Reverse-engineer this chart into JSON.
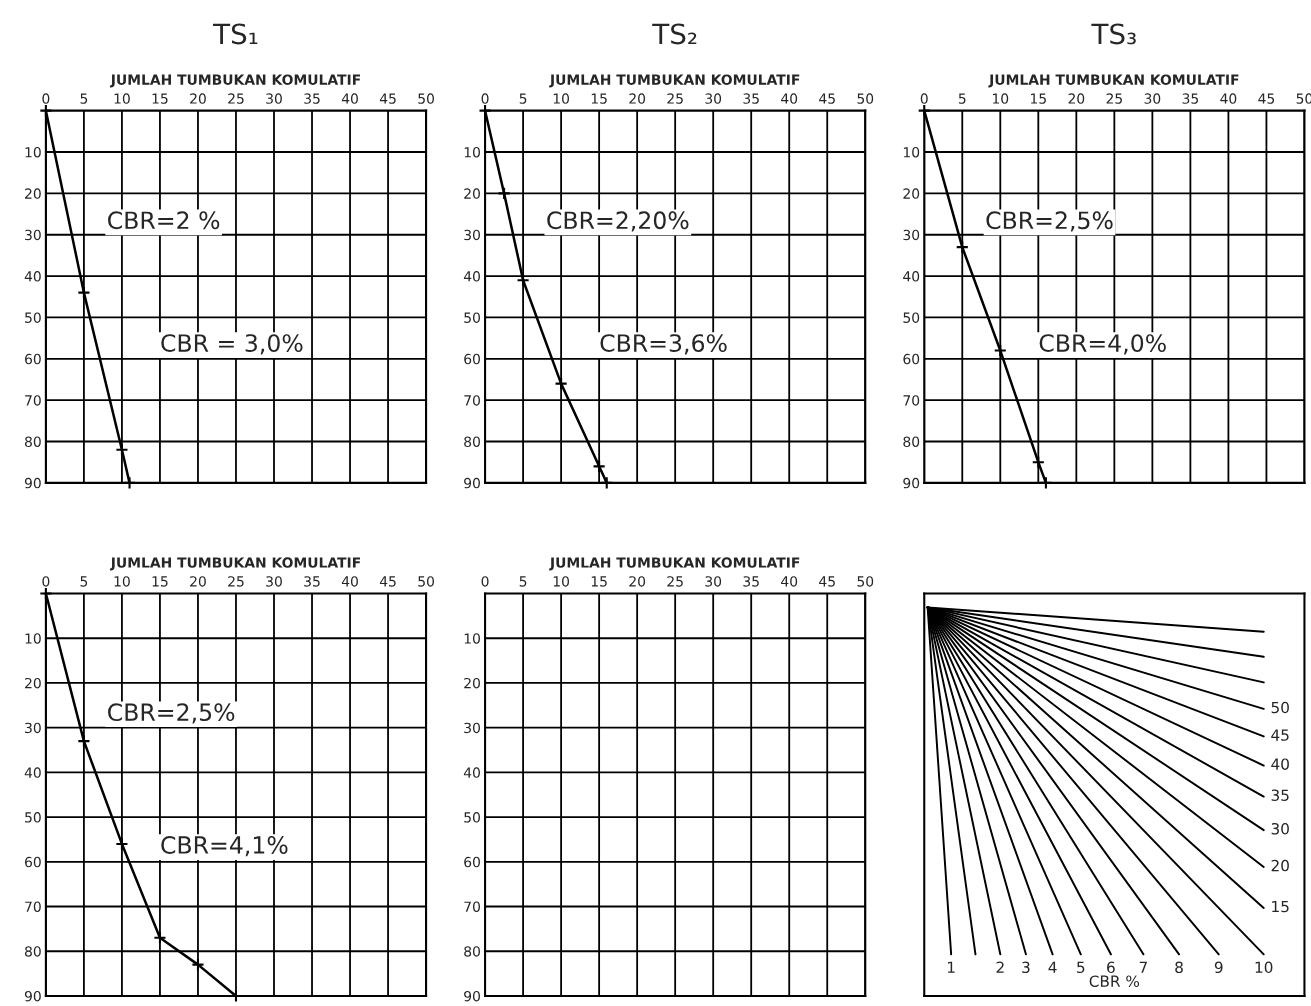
{
  "chart_data": [
    {
      "type": "line",
      "title": "TS₁",
      "xlabel": "JUMLAH TUMBUKAN KOMULATIF",
      "xlim": [
        0,
        50
      ],
      "ylim": [
        90,
        0
      ],
      "xticks": [
        0,
        5,
        10,
        15,
        20,
        25,
        30,
        35,
        40,
        45,
        50
      ],
      "yticks": [
        10,
        20,
        30,
        40,
        50,
        60,
        70,
        80,
        90
      ],
      "grid": true,
      "marker": "cross",
      "line_style": "solid",
      "series": [
        {
          "color": "#000000",
          "x": [
            0,
            5,
            10,
            11
          ],
          "values": [
            0,
            44,
            82,
            90
          ]
        }
      ],
      "annotations": [
        "CBR=2 %",
        "CBR = 3,0%"
      ]
    },
    {
      "type": "line",
      "title": "TS₂",
      "xlabel": "JUMLAH TUMBUKAN KOMULATIF",
      "xlim": [
        0,
        50
      ],
      "ylim": [
        90,
        0
      ],
      "xticks": [
        0,
        5,
        10,
        15,
        20,
        25,
        30,
        35,
        40,
        45,
        50
      ],
      "yticks": [
        10,
        20,
        30,
        40,
        50,
        60,
        70,
        80,
        90
      ],
      "grid": true,
      "marker": "cross",
      "line_style": "solid",
      "series": [
        {
          "color": "#000000",
          "x": [
            0,
            2.5,
            5,
            10,
            15,
            16
          ],
          "values": [
            0,
            20,
            41,
            66,
            86,
            90
          ]
        }
      ],
      "annotations": [
        "CBR=2,20%",
        "CBR=3,6%"
      ]
    },
    {
      "type": "line",
      "title": "TS₃",
      "xlabel": "JUMLAH TUMBUKAN KOMULATIF",
      "xlim": [
        0,
        50
      ],
      "ylim": [
        90,
        0
      ],
      "xticks": [
        0,
        5,
        10,
        15,
        20,
        25,
        30,
        35,
        40,
        45,
        50
      ],
      "yticks": [
        10,
        20,
        30,
        40,
        50,
        60,
        70,
        80,
        90
      ],
      "grid": true,
      "marker": "cross",
      "line_style": "solid",
      "series": [
        {
          "color": "#000000",
          "x": [
            0,
            5,
            10,
            15,
            16
          ],
          "values": [
            0,
            33,
            58,
            85,
            90
          ]
        }
      ],
      "annotations": [
        "CBR=2,5%",
        "CBR=4,0%"
      ]
    },
    {
      "type": "line",
      "xlabel": "JUMLAH TUMBUKAN KOMULATIF",
      "xlim": [
        0,
        50
      ],
      "ylim": [
        90,
        0
      ],
      "xticks": [
        0,
        5,
        10,
        15,
        20,
        25,
        30,
        35,
        40,
        45,
        50
      ],
      "yticks": [
        10,
        20,
        30,
        40,
        50,
        60,
        70,
        80,
        90
      ],
      "grid": true,
      "marker": "cross",
      "line_style": "solid",
      "series": [
        {
          "color": "#000000",
          "x": [
            0,
            5,
            10,
            15,
            20,
            25
          ],
          "values": [
            0,
            33,
            56,
            77,
            83,
            90
          ]
        }
      ],
      "annotations": [
        "CBR=2,5%",
        "CBR=4,1%"
      ]
    },
    {
      "type": "line",
      "xlabel": "JUMLAH TUMBUKAN KOMULATIF",
      "xlim": [
        0,
        50
      ],
      "ylim": [
        90,
        0
      ],
      "xticks": [
        0,
        5,
        10,
        15,
        20,
        25,
        30,
        35,
        40,
        45,
        50
      ],
      "yticks": [
        10,
        20,
        30,
        40,
        50,
        60,
        70,
        80,
        90
      ],
      "grid": true
    },
    {
      "type": "other",
      "annotations": [
        "CBR %"
      ],
      "categories": [
        "1",
        null,
        "2",
        "3",
        "4",
        "5",
        "6",
        "7",
        "8",
        "9",
        "10",
        "15",
        "20",
        "30",
        "35",
        "40",
        "45",
        "50",
        null,
        null,
        null
      ]
    }
  ]
}
